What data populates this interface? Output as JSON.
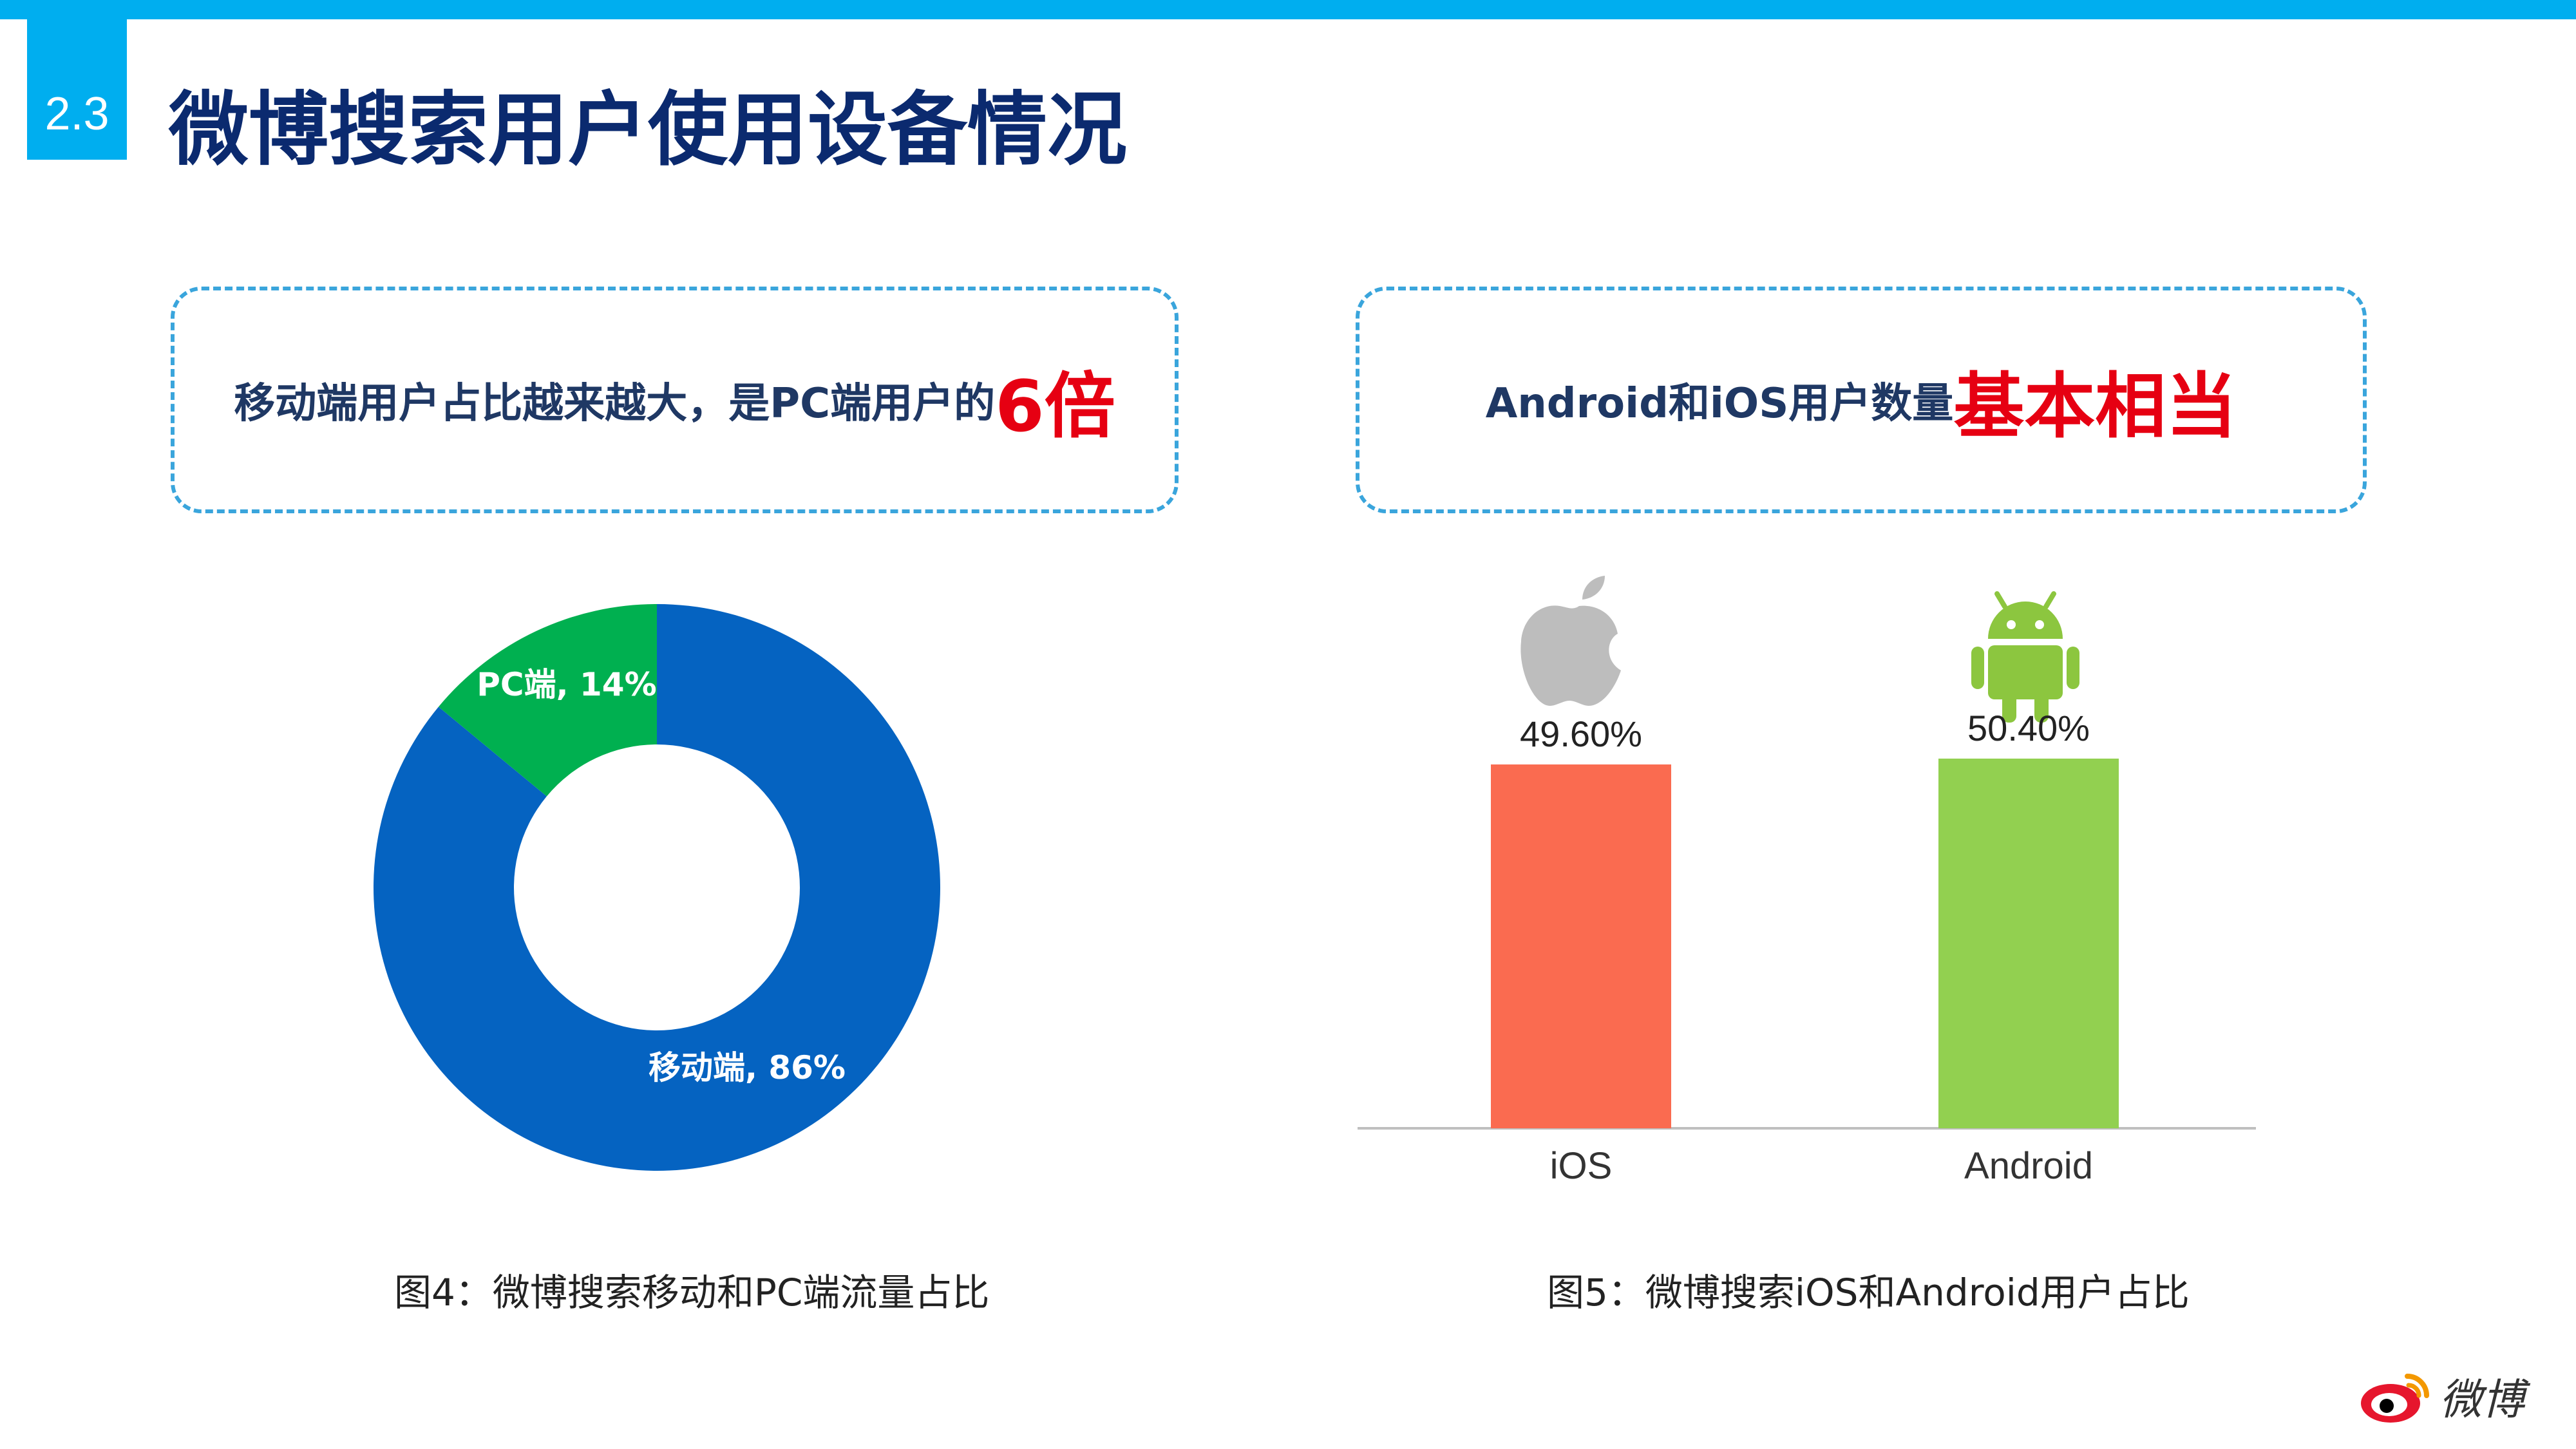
{
  "header": {
    "section_number": "2.3",
    "title": "微博搜索用户使用设备情况"
  },
  "callouts": {
    "left": {
      "text": "移动端用户占比越来越大，是PC端用户的",
      "highlight": "6倍"
    },
    "right": {
      "text": "Android和iOS用户数量",
      "highlight": "基本相当"
    }
  },
  "captions": {
    "left": "图4：微博搜索移动和PC端流量占比",
    "right": "图5：微博搜索iOS和Android用户占比"
  },
  "logo": {
    "text": "微博"
  },
  "chart_data": [
    {
      "type": "pie",
      "subtype": "donut",
      "slices": [
        {
          "label": "移动端, 86%",
          "category": "移动端",
          "value": 86,
          "color": "#0563c1"
        },
        {
          "label": "PC端, 14%",
          "category": "PC端",
          "value": 14,
          "color": "#00b050"
        }
      ]
    },
    {
      "type": "bar",
      "categories": [
        "iOS",
        "Android"
      ],
      "values": [
        49.6,
        50.4
      ],
      "data_labels": [
        "49.60%",
        "50.40%"
      ],
      "colors": [
        "#fa6b50",
        "#92d050"
      ],
      "icons": [
        "apple-icon",
        "android-icon"
      ],
      "ylim": [
        0,
        52
      ],
      "grid": false,
      "legend": "none"
    }
  ]
}
